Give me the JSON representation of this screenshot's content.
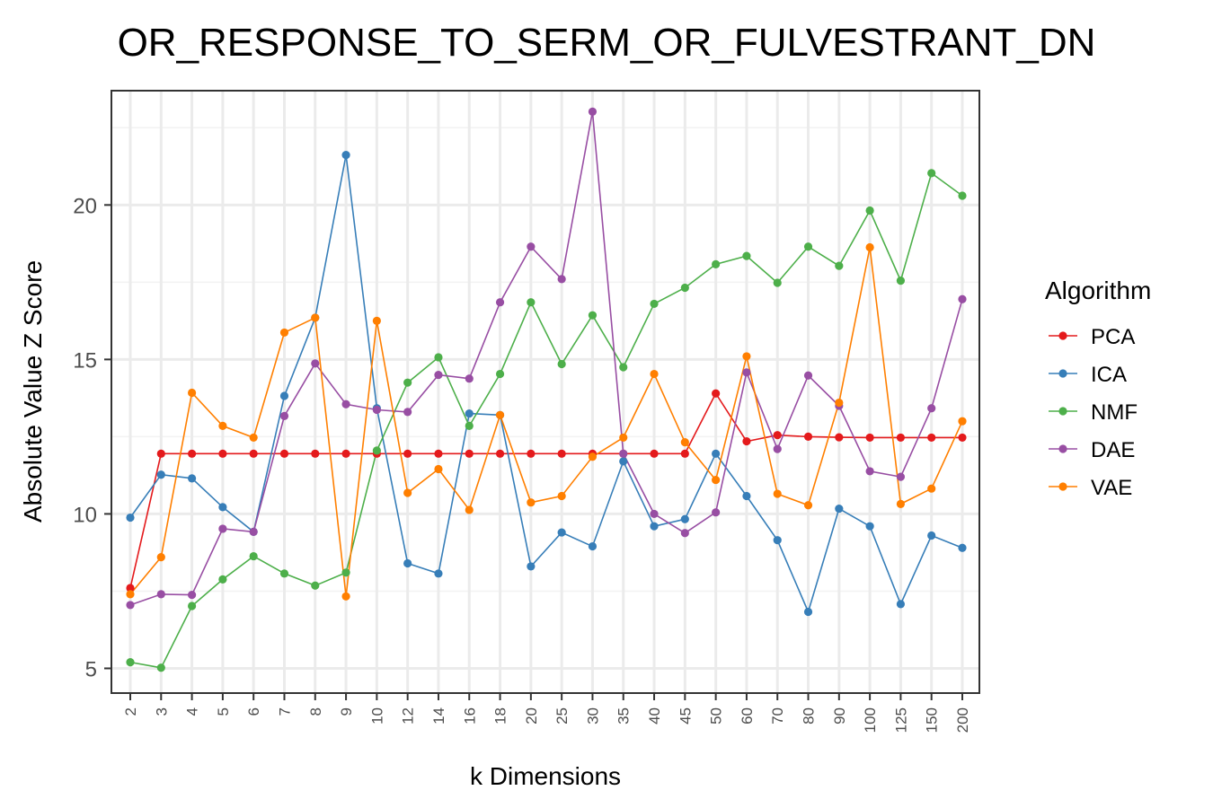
{
  "chart_data": {
    "type": "line",
    "title": "OR_RESPONSE_TO_SERM_OR_FULVESTRANT_DN",
    "xlabel": "k Dimensions",
    "ylabel": "Absolute Value Z Score",
    "ylim": [
      4.2,
      23.7
    ],
    "yticks": [
      5,
      10,
      15,
      20
    ],
    "grid": true,
    "legend": {
      "title": "Algorithm",
      "position": "right"
    },
    "categories": [
      "2",
      "3",
      "4",
      "5",
      "6",
      "7",
      "8",
      "9",
      "10",
      "12",
      "14",
      "16",
      "18",
      "20",
      "25",
      "30",
      "35",
      "40",
      "45",
      "50",
      "60",
      "70",
      "80",
      "90",
      "100",
      "125",
      "150",
      "200"
    ],
    "series": [
      {
        "name": "PCA",
        "color": "#e41a1c",
        "values": [
          7.6,
          11.95,
          11.95,
          11.95,
          11.95,
          11.95,
          11.95,
          11.95,
          11.95,
          11.95,
          11.95,
          11.95,
          11.95,
          11.95,
          11.95,
          11.95,
          11.95,
          11.95,
          11.95,
          13.9,
          12.35,
          12.55,
          12.5,
          12.48,
          12.47,
          12.47,
          12.47,
          12.47
        ]
      },
      {
        "name": "ICA",
        "color": "#377eb8",
        "values": [
          9.88,
          11.27,
          11.15,
          10.22,
          9.42,
          13.82,
          16.35,
          21.62,
          13.42,
          8.4,
          8.07,
          13.25,
          13.2,
          8.3,
          9.4,
          8.95,
          11.7,
          9.6,
          9.83,
          11.95,
          10.58,
          9.15,
          6.83,
          10.17,
          9.6,
          7.08,
          9.3,
          8.9
        ]
      },
      {
        "name": "NMF",
        "color": "#4daf4a",
        "values": [
          5.2,
          5.02,
          7.02,
          7.88,
          8.63,
          8.07,
          7.68,
          8.1,
          12.05,
          14.25,
          15.07,
          12.85,
          14.53,
          16.85,
          14.85,
          16.43,
          14.75,
          16.8,
          17.32,
          18.08,
          18.35,
          17.48,
          18.65,
          18.03,
          19.82,
          17.55,
          21.03,
          20.3
        ]
      },
      {
        "name": "DAE",
        "color": "#984ea3",
        "values": [
          7.05,
          7.4,
          7.38,
          9.52,
          9.42,
          13.17,
          14.87,
          13.55,
          13.37,
          13.3,
          14.5,
          14.38,
          16.85,
          18.65,
          17.6,
          23.02,
          11.95,
          10.0,
          9.38,
          10.05,
          14.58,
          12.1,
          14.48,
          13.5,
          11.38,
          11.2,
          13.42,
          16.95
        ]
      },
      {
        "name": "VAE",
        "color": "#ff7f00",
        "values": [
          7.4,
          8.6,
          13.92,
          12.85,
          12.47,
          15.87,
          16.35,
          7.33,
          16.25,
          10.68,
          11.45,
          10.13,
          13.2,
          10.37,
          10.58,
          11.85,
          12.47,
          14.53,
          12.32,
          11.1,
          15.1,
          10.65,
          10.28,
          13.6,
          18.63,
          10.32,
          10.82,
          13.0
        ]
      }
    ]
  }
}
